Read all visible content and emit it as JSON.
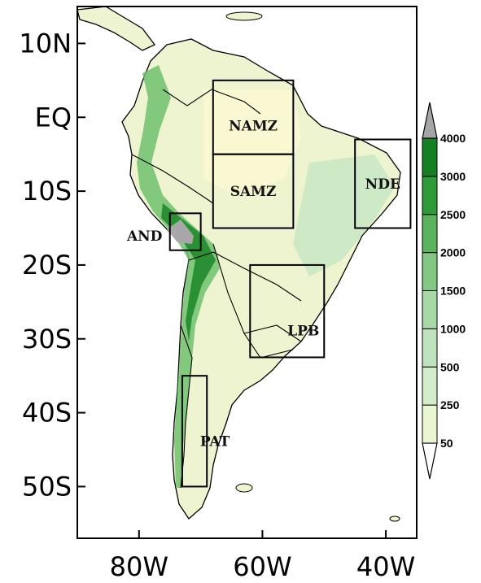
{
  "map": {
    "lon_range": [
      -90,
      -35
    ],
    "lat_range": [
      -57,
      15
    ],
    "lon_ticks": [
      {
        "value": -80,
        "label": "80W"
      },
      {
        "value": -60,
        "label": "60W"
      },
      {
        "value": -40,
        "label": "40W"
      }
    ],
    "lat_ticks": [
      {
        "value": 10,
        "label": "10N"
      },
      {
        "value": 0,
        "label": "EQ"
      },
      {
        "value": -10,
        "label": "10S"
      },
      {
        "value": -20,
        "label": "20S"
      },
      {
        "value": -30,
        "label": "30S"
      },
      {
        "value": -40,
        "label": "40S"
      },
      {
        "value": -50,
        "label": "50S"
      }
    ],
    "regions": [
      {
        "label": "NAMZ",
        "lon": [
          -68,
          -55
        ],
        "lat": [
          -5,
          5
        ]
      },
      {
        "label": "SAMZ",
        "lon": [
          -68,
          -55
        ],
        "lat": [
          -15,
          -5
        ]
      },
      {
        "label": "NDE",
        "lon": [
          -45,
          -36
        ],
        "lat": [
          -15,
          -3
        ]
      },
      {
        "label": "AND",
        "lon": [
          -75,
          -70
        ],
        "lat": [
          -18,
          -13
        ]
      },
      {
        "label": "LPB",
        "lon": [
          -62,
          -50
        ],
        "lat": [
          -32.5,
          -20
        ]
      },
      {
        "label": "PAT",
        "lon": [
          -73,
          -69
        ],
        "lat": [
          -50,
          -35
        ]
      }
    ],
    "colorbar": {
      "labels": [
        "50",
        "250",
        "500",
        "1000",
        "1500",
        "2000",
        "2500",
        "3000",
        "4000"
      ],
      "colors": [
        "#fbf8d3",
        "#eaf5d2",
        "#d3eccb",
        "#bfe3bd",
        "#a6d9a6",
        "#82c882",
        "#5bb35d",
        "#2f9a38",
        "#157f23",
        "#a6a6a6"
      ]
    }
  }
}
